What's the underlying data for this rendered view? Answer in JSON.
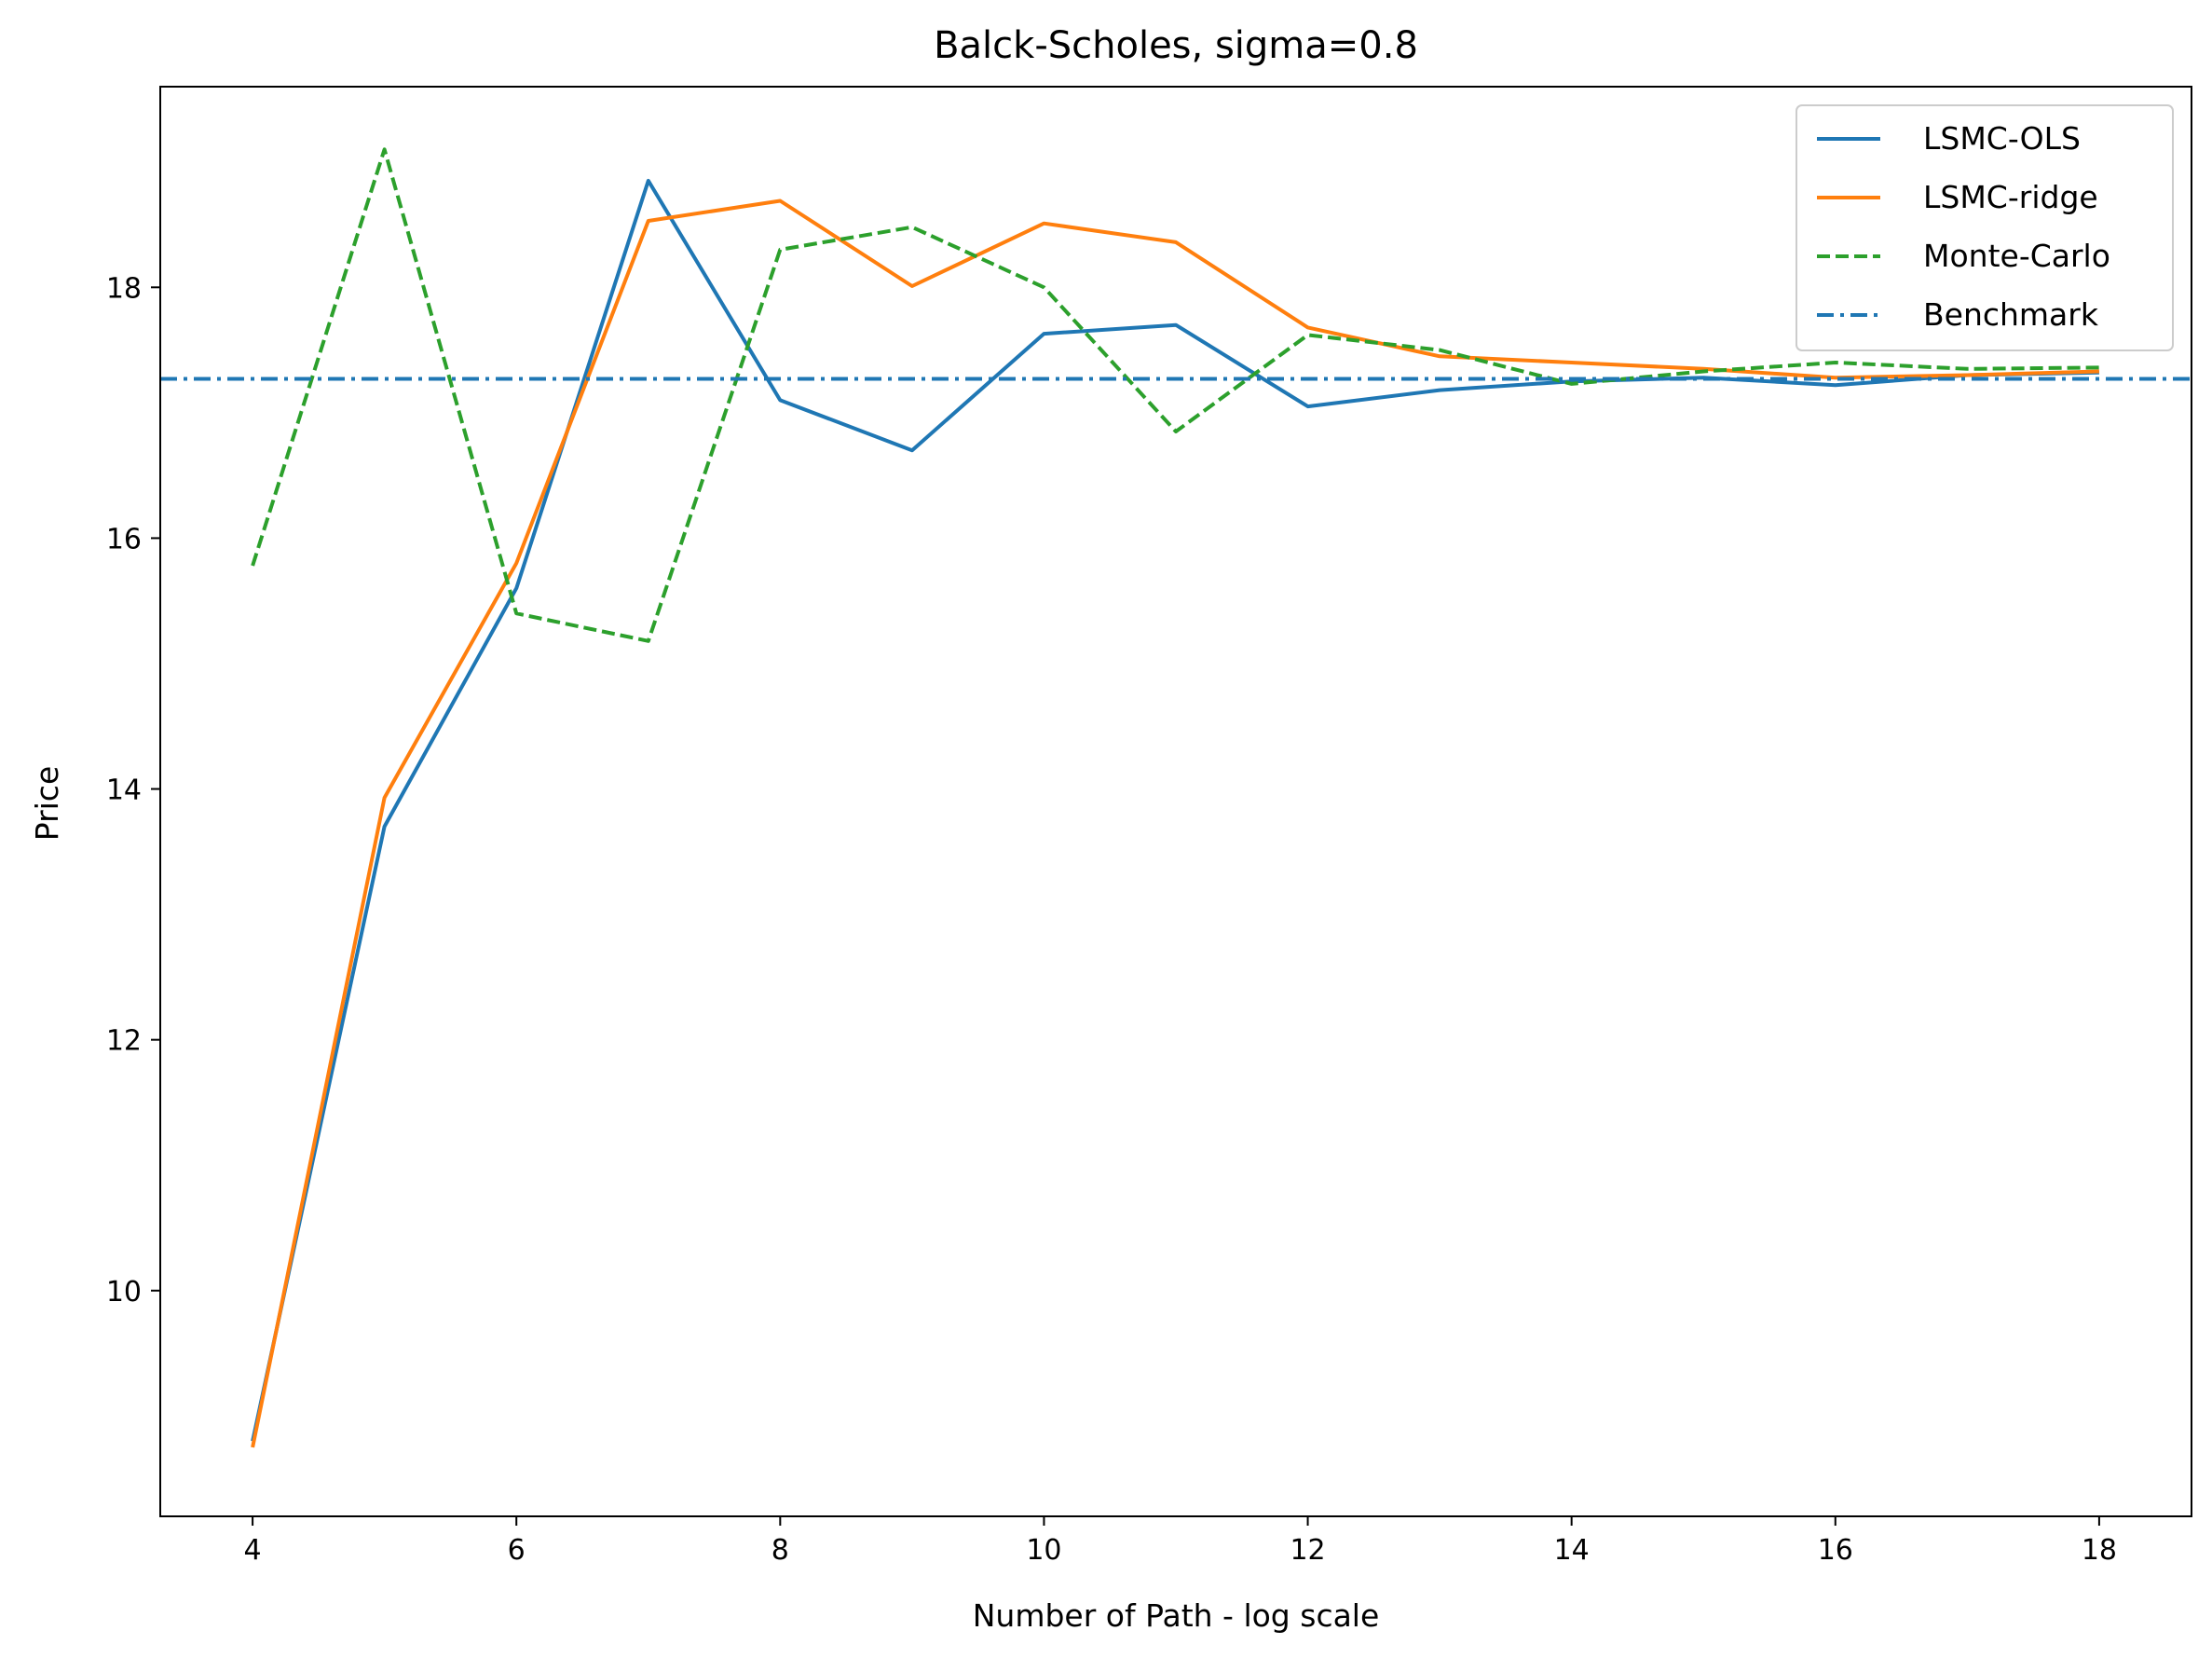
{
  "chart_data": {
    "type": "line",
    "title": "Balck-Scholes, sigma=0.8",
    "xlabel": "Number of Path - log scale",
    "ylabel": "Price",
    "xlim": [
      3.3,
      18.7
    ],
    "ylim": [
      8.2,
      19.6
    ],
    "xticks": [
      4,
      6,
      8,
      10,
      12,
      14,
      16,
      18
    ],
    "yticks": [
      10,
      12,
      14,
      16,
      18
    ],
    "grid": false,
    "legend_position": "top-right",
    "x": [
      4,
      5,
      6,
      7,
      8,
      9,
      10,
      11,
      12,
      13,
      14,
      15,
      16,
      17,
      18
    ],
    "series": [
      {
        "name": "LSMC-OLS",
        "color": "#1f77b4",
        "style": "solid",
        "values": [
          8.8,
          13.7,
          15.6,
          18.85,
          17.1,
          16.7,
          17.63,
          17.7,
          17.05,
          17.18,
          17.25,
          17.28,
          17.22,
          17.3,
          17.32
        ]
      },
      {
        "name": "LSMC-ridge",
        "color": "#ff7f0e",
        "style": "solid",
        "values": [
          8.75,
          13.93,
          15.8,
          18.53,
          18.69,
          18.01,
          18.51,
          18.36,
          17.68,
          17.45,
          17.4,
          17.35,
          17.28,
          17.3,
          17.33
        ]
      },
      {
        "name": "Monte-Carlo",
        "color": "#2ca02c",
        "style": "dashed",
        "values": [
          15.78,
          19.1,
          15.4,
          15.18,
          18.3,
          18.48,
          18.0,
          16.85,
          17.62,
          17.5,
          17.23,
          17.33,
          17.4,
          17.35,
          17.36
        ]
      }
    ],
    "benchmark": {
      "name": "Benchmark",
      "color": "#1f77b4",
      "style": "dashdot",
      "value": 17.27
    }
  }
}
